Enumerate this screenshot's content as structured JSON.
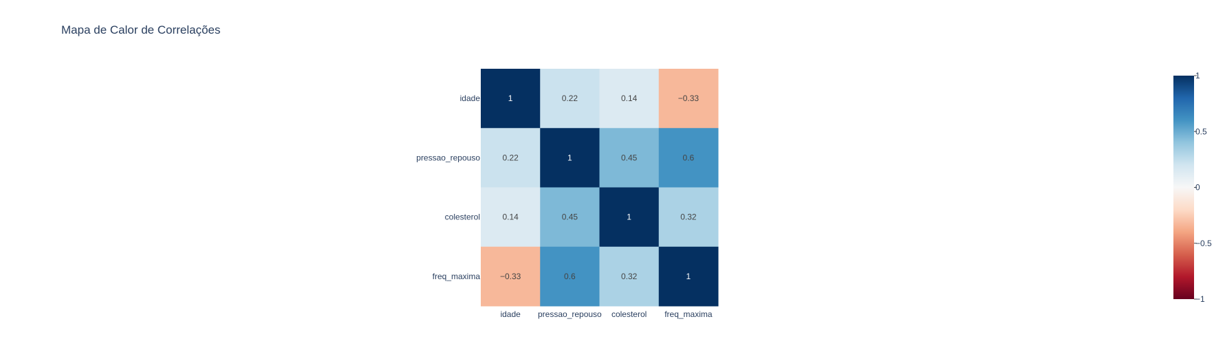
{
  "chart_data": {
    "type": "heatmap",
    "title": "Mapa de Calor de Correlações",
    "x": [
      "idade",
      "pressao_repouso",
      "colesterol",
      "freq_maxima"
    ],
    "y": [
      "idade",
      "pressao_repouso",
      "colesterol",
      "freq_maxima"
    ],
    "z": [
      [
        1,
        0.22,
        0.14,
        -0.33
      ],
      [
        0.22,
        1,
        0.45,
        0.6
      ],
      [
        0.14,
        0.45,
        1,
        0.32
      ],
      [
        -0.33,
        0.6,
        0.32,
        1
      ]
    ],
    "cell_labels": [
      [
        "1",
        "0.22",
        "0.14",
        "−0.33"
      ],
      [
        "0.22",
        "1",
        "0.45",
        "0.6"
      ],
      [
        "0.14",
        "0.45",
        "1",
        "0.32"
      ],
      [
        "−0.33",
        "0.6",
        "0.32",
        "1"
      ]
    ],
    "zlim": [
      -1,
      1
    ],
    "colorscale": "RdBu",
    "colorscale_stops": [
      "#67001f",
      "#b2182b",
      "#d6604d",
      "#f4a582",
      "#fddbc7",
      "#f7f7f7",
      "#d1e5f0",
      "#92c5de",
      "#4393c3",
      "#2166ac",
      "#053061"
    ],
    "colorbar": {
      "ticks": [
        1,
        0.5,
        0,
        -0.5,
        -1
      ],
      "tick_labels": [
        "1",
        "0.5",
        "0",
        "−0.5",
        "−1"
      ]
    },
    "legend": "none",
    "grid": false
  }
}
